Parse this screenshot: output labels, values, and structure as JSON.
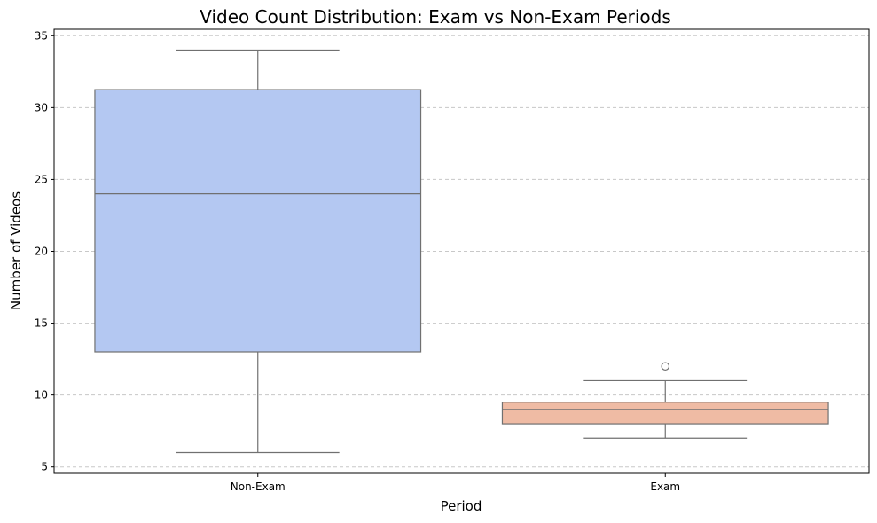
{
  "chart_data": {
    "type": "box",
    "title": "Video Count Distribution: Exam vs Non-Exam Periods",
    "xlabel": "Period",
    "ylabel": "Number of Videos",
    "ylim": [
      4.55,
      35.45
    ],
    "yticks": [
      5,
      10,
      15,
      20,
      25,
      30,
      35
    ],
    "grid": "y-dashed",
    "categories": [
      "Non-Exam",
      "Exam"
    ],
    "boxes": [
      {
        "category": "Non-Exam",
        "whisker_low": 6,
        "q1": 13,
        "median": 24,
        "q3": 31.25,
        "whisker_high": 34,
        "outliers": [],
        "color": "#b4c8f2"
      },
      {
        "category": "Exam",
        "whisker_low": 7,
        "q1": 8,
        "median": 9,
        "q3": 9.5,
        "whisker_high": 11,
        "outliers": [
          12
        ],
        "color": "#efbba4"
      }
    ],
    "line_color": "#707070",
    "grid_color": "#c8c8c8"
  }
}
